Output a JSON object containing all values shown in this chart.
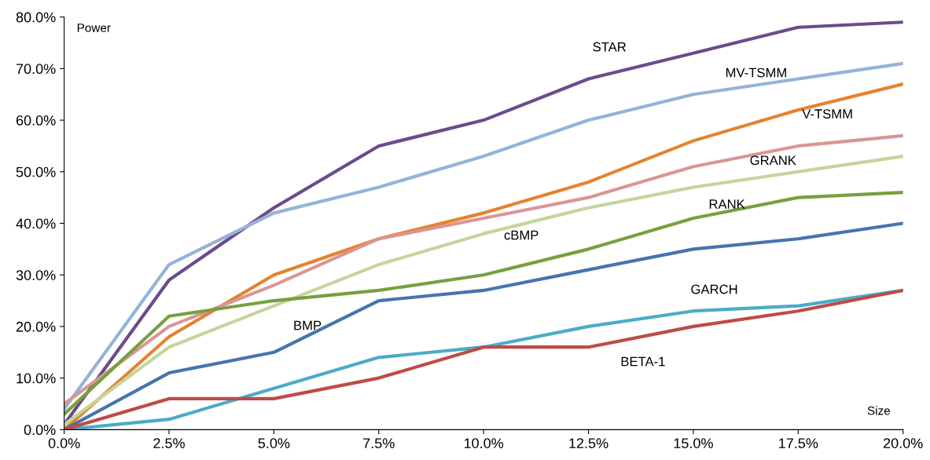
{
  "chart_data": {
    "type": "line",
    "xlabel": "Size",
    "ylabel": "Power",
    "x": [
      0,
      2.5,
      5,
      7.5,
      10,
      12.5,
      15,
      17.5,
      20
    ],
    "xlim": [
      0,
      20
    ],
    "ylim": [
      0,
      80
    ],
    "xticks": [
      {
        "value": 0,
        "label": "0.0%"
      },
      {
        "value": 2.5,
        "label": "2.5%"
      },
      {
        "value": 5,
        "label": "5.0%"
      },
      {
        "value": 7.5,
        "label": "7.5%"
      },
      {
        "value": 10,
        "label": "10.0%"
      },
      {
        "value": 12.5,
        "label": "12.5%"
      },
      {
        "value": 15,
        "label": "15.0%"
      },
      {
        "value": 17.5,
        "label": "17.5%"
      },
      {
        "value": 20,
        "label": "20.0%"
      }
    ],
    "yticks": [
      {
        "value": 0,
        "label": "0.0%"
      },
      {
        "value": 10,
        "label": "10.0%"
      },
      {
        "value": 20,
        "label": "20.0%"
      },
      {
        "value": 30,
        "label": "30.0%"
      },
      {
        "value": 40,
        "label": "40.0%"
      },
      {
        "value": 50,
        "label": "50.0%"
      },
      {
        "value": 60,
        "label": "60.0%"
      },
      {
        "value": 70,
        "label": "70.0%"
      },
      {
        "value": 80,
        "label": "80.0%"
      }
    ],
    "grid": false,
    "legend": false,
    "marker": "none",
    "line_style": "solid",
    "series": [
      {
        "name": "STAR",
        "color": "#6a4c8c",
        "values": [
          1,
          29,
          43,
          55,
          60,
          68,
          73,
          78,
          79
        ]
      },
      {
        "name": "MV-TSMM",
        "color": "#95b3d7",
        "values": [
          4,
          32,
          42,
          47,
          53,
          60,
          65,
          68,
          71
        ]
      },
      {
        "name": "V-TSMM",
        "color": "#e4832f",
        "values": [
          0,
          18,
          30,
          37,
          42,
          48,
          56,
          62,
          67
        ]
      },
      {
        "name": "GRANK",
        "color": "#d99694",
        "values": [
          5,
          20,
          28,
          37,
          41,
          45,
          51,
          55,
          57
        ]
      },
      {
        "name": "cBMP",
        "color": "#c3d69b",
        "values": [
          1,
          16,
          24,
          32,
          38,
          43,
          47,
          50,
          53
        ]
      },
      {
        "name": "RANK",
        "color": "#77a03f",
        "values": [
          3,
          22,
          25,
          27,
          30,
          35,
          41,
          45,
          46
        ]
      },
      {
        "name": "BMP",
        "color": "#4674b0",
        "values": [
          0,
          11,
          15,
          25,
          27,
          31,
          35,
          37,
          40
        ]
      },
      {
        "name": "GARCH",
        "color": "#4bacc6",
        "values": [
          0,
          2,
          8,
          14,
          16,
          20,
          23,
          24,
          27
        ]
      },
      {
        "name": "BETA-1",
        "color": "#be4b48",
        "values": [
          0,
          6,
          6,
          10,
          16,
          16,
          20,
          23,
          27
        ]
      }
    ]
  }
}
